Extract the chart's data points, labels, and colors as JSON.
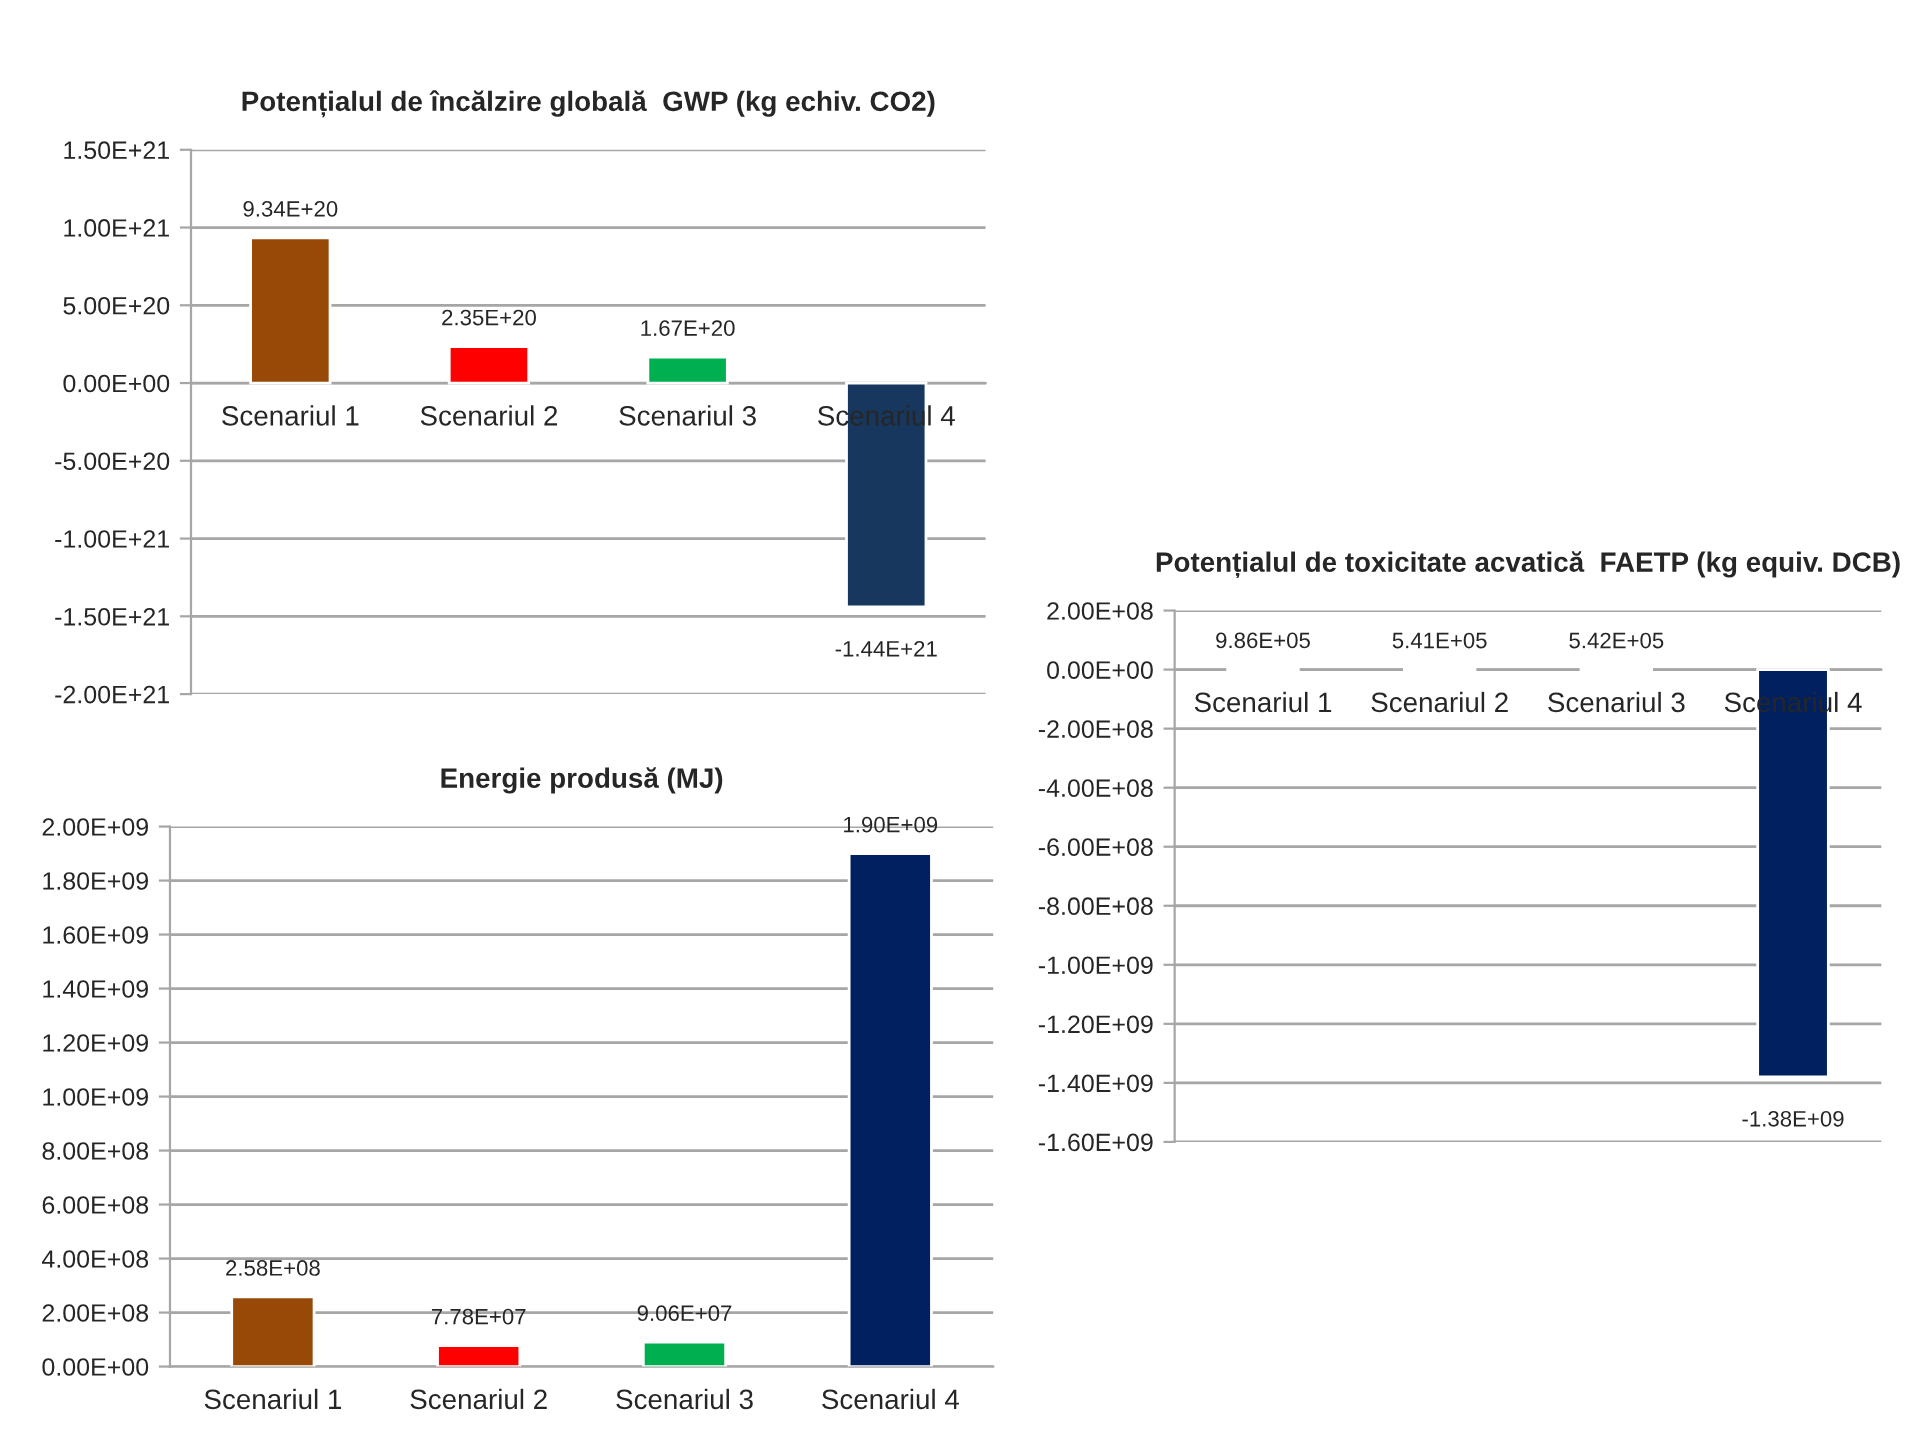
{
  "chart_data": [
    {
      "type": "bar",
      "title": "Potențialul de încălzire globală  GWP (kg echiv. CO2)",
      "categories": [
        "Scenariul 1",
        "Scenariul 2",
        "Scenariul 3",
        "Scenariul 4"
      ],
      "values": [
        9.34e+20,
        2.35e+20,
        1.67e+20,
        -1.44e+21
      ],
      "colors": [
        "#984807",
        "#ff0000",
        "#00b050",
        "#17375e"
      ],
      "value_labels": [
        "9.34E+20",
        "2.35E+20",
        "1.67E+20",
        "-1.44E+21"
      ],
      "ylim": [
        -2e+21,
        1.5e+21
      ],
      "yticks": [
        {
          "value": -2e+21,
          "label": "-2.00E+21"
        },
        {
          "value": -1.5e+21,
          "label": "-1.50E+21"
        },
        {
          "value": -1e+21,
          "label": "-1.00E+21"
        },
        {
          "value": -5e+20,
          "label": "-5.00E+20"
        },
        {
          "value": 0,
          "label": "0.00E+00"
        },
        {
          "value": 5e+20,
          "label": "5.00E+20"
        },
        {
          "value": 1e+21,
          "label": "1.00E+21"
        },
        {
          "value": 1.5e+21,
          "label": "1.50E+21"
        }
      ],
      "grid": "y"
    },
    {
      "type": "bar",
      "title": "Energie produsă (MJ)",
      "categories": [
        "Scenariul 1",
        "Scenariul 2",
        "Scenariul 3",
        "Scenariul 4"
      ],
      "values": [
        258000000.0,
        77800000.0,
        90600000.0,
        1900000000.0
      ],
      "colors": [
        "#984807",
        "#ff0000",
        "#00b050",
        "#002060"
      ],
      "value_labels": [
        "2.58E+08",
        "7.78E+07",
        "9.06E+07",
        "1.90E+09"
      ],
      "ylim": [
        0,
        2000000000.0
      ],
      "yticks": [
        {
          "value": 0,
          "label": "0.00E+00"
        },
        {
          "value": 200000000.0,
          "label": "2.00E+08"
        },
        {
          "value": 400000000.0,
          "label": "4.00E+08"
        },
        {
          "value": 600000000.0,
          "label": "6.00E+08"
        },
        {
          "value": 800000000.0,
          "label": "8.00E+08"
        },
        {
          "value": 1000000000.0,
          "label": "1.00E+09"
        },
        {
          "value": 1200000000.0,
          "label": "1.20E+09"
        },
        {
          "value": 1400000000.0,
          "label": "1.40E+09"
        },
        {
          "value": 1600000000.0,
          "label": "1.60E+09"
        },
        {
          "value": 1800000000.0,
          "label": "1.80E+09"
        },
        {
          "value": 2000000000.0,
          "label": "2.00E+09"
        }
      ],
      "grid": "y"
    },
    {
      "type": "bar",
      "title": "Potențialul de toxicitate acvatică  FAETP (kg equiv. DCB)",
      "categories": [
        "Scenariul 1",
        "Scenariul 2",
        "Scenariul 3",
        "Scenariul 4"
      ],
      "values": [
        986000.0,
        541000.0,
        542000.0,
        -1380000000.0
      ],
      "colors": [
        "#984807",
        "#ff0000",
        "#00b050",
        "#002060"
      ],
      "value_labels": [
        "9.86E+05",
        "5.41E+05",
        "5.42E+05",
        "-1.38E+09"
      ],
      "ylim": [
        -1600000000.0,
        200000000.0
      ],
      "yticks": [
        {
          "value": -1600000000.0,
          "label": "-1.60E+09"
        },
        {
          "value": -1400000000.0,
          "label": "-1.40E+09"
        },
        {
          "value": -1200000000.0,
          "label": "-1.20E+09"
        },
        {
          "value": -1000000000.0,
          "label": "-1.00E+09"
        },
        {
          "value": -800000000.0,
          "label": "-8.00E+08"
        },
        {
          "value": -600000000.0,
          "label": "-6.00E+08"
        },
        {
          "value": -400000000.0,
          "label": "-4.00E+08"
        },
        {
          "value": -200000000.0,
          "label": "-2.00E+08"
        },
        {
          "value": 0,
          "label": "0.00E+00"
        },
        {
          "value": 200000000.0,
          "label": "2.00E+08"
        }
      ],
      "grid": "y"
    }
  ]
}
